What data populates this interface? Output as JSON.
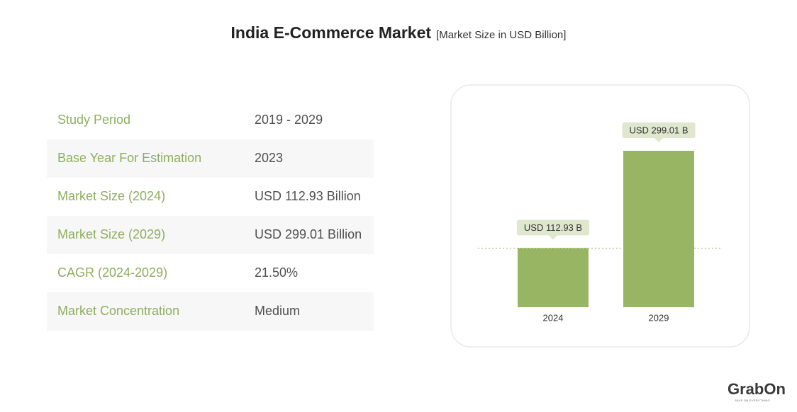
{
  "header": {
    "title": "India E-Commerce Market",
    "subtitle": "[Market Size in USD Billion]"
  },
  "table": {
    "rows": [
      [
        "Study Period",
        "2019 - 2029"
      ],
      [
        "Base Year For Estimation",
        "2023"
      ],
      [
        "Market Size (2024)",
        "USD 112.93 Billion"
      ],
      [
        "Market Size (2029)",
        "USD 299.01 Billion"
      ],
      [
        "CAGR (2024-2029)",
        "21.50%"
      ],
      [
        "Market Concentration",
        "Medium"
      ]
    ]
  },
  "chart_data": {
    "type": "bar",
    "categories": [
      "2024",
      "2029"
    ],
    "values": [
      112.93,
      299.01
    ],
    "value_labels": [
      "USD 112.93 B",
      "USD 299.01 B"
    ],
    "color": "#97b562"
  },
  "logo": {
    "text": "GrabOn",
    "tagline": "SAVE ON EVERYTHING"
  }
}
